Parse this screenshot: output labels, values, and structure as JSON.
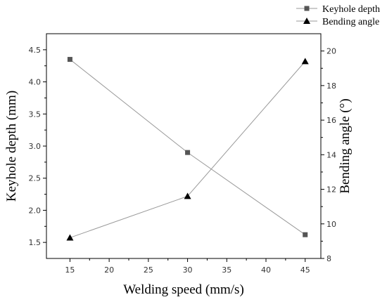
{
  "chart_data": {
    "type": "line",
    "title": "",
    "xlabel": "Welding speed (mm/s)",
    "ylabel_left": "Keyhole depth (mm)",
    "ylabel_right": "Bending angle (°)",
    "xlim": [
      12,
      47
    ],
    "ylim_left": [
      1.25,
      4.75
    ],
    "ylim_right": [
      8,
      21
    ],
    "x_ticks": [
      15,
      20,
      25,
      30,
      35,
      40,
      45
    ],
    "y_left_ticks": [
      1.5,
      2.0,
      2.5,
      3.0,
      3.5,
      4.0,
      4.5
    ],
    "y_right_ticks": [
      8,
      10,
      12,
      14,
      16,
      18,
      20
    ],
    "grid": false,
    "legend_position": "top-right, above plot",
    "series": [
      {
        "name": "Keyhole depth",
        "axis": "left",
        "marker": "square",
        "color": "#555555",
        "x": [
          15,
          30,
          45
        ],
        "y": [
          4.35,
          2.9,
          1.62
        ]
      },
      {
        "name": "Bending angle",
        "axis": "right",
        "marker": "triangle",
        "color": "#000000",
        "x": [
          15,
          30,
          45
        ],
        "y": [
          9.2,
          11.6,
          19.4
        ]
      }
    ]
  }
}
